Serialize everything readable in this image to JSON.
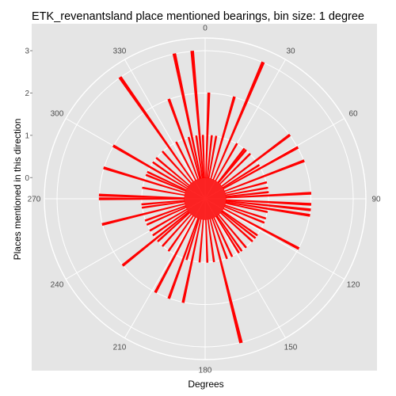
{
  "chart_data": {
    "type": "bar",
    "coord": "polar",
    "title": "ETK_revenantsland place mentioned bearings, bin size: 1 degree",
    "xlabel": "Degrees",
    "ylabel": "Places mentioned in this direction",
    "angle_ticks": [
      "0",
      "30",
      "60",
      "90",
      "120",
      "150",
      "180",
      "210",
      "240",
      "270",
      "300",
      "330"
    ],
    "radial_ticks": [
      "0",
      "1",
      "2",
      "3"
    ],
    "ylim": [
      -0.5,
      3.3
    ],
    "grid": true,
    "bar_fill": "#ff0000",
    "bar_outline": "#ff0000",
    "panel_background": "#e5e5e5",
    "grid_color": "#ffffff",
    "bars": [
      {
        "deg": 348,
        "count": 3
      },
      {
        "deg": 355,
        "count": 3
      },
      {
        "deg": 2,
        "count": 2
      },
      {
        "deg": 23,
        "count": 3
      },
      {
        "deg": 16,
        "count": 2
      },
      {
        "deg": 340,
        "count": 2
      },
      {
        "deg": 325,
        "count": 3
      },
      {
        "deg": 53,
        "count": 2
      },
      {
        "deg": 61,
        "count": 2
      },
      {
        "deg": 69,
        "count": 2
      },
      {
        "deg": 87,
        "count": 2
      },
      {
        "deg": 93,
        "count": 2
      },
      {
        "deg": 96,
        "count": 2
      },
      {
        "deg": 99,
        "count": 2
      },
      {
        "deg": 118,
        "count": 2
      },
      {
        "deg": 166,
        "count": 3
      },
      {
        "deg": 192,
        "count": 2
      },
      {
        "deg": 200,
        "count": 2
      },
      {
        "deg": 208,
        "count": 2
      },
      {
        "deg": 231,
        "count": 2
      },
      {
        "deg": 256,
        "count": 2
      },
      {
        "deg": 270,
        "count": 2
      },
      {
        "deg": 272,
        "count": 2
      },
      {
        "deg": 287,
        "count": 2
      },
      {
        "deg": 300,
        "count": 2
      },
      {
        "deg": 6,
        "count": 1
      },
      {
        "deg": 10,
        "count": 1
      },
      {
        "deg": 30,
        "count": 1
      },
      {
        "deg": 38,
        "count": 1
      },
      {
        "deg": 45,
        "count": 1
      },
      {
        "deg": 75,
        "count": 1
      },
      {
        "deg": 80,
        "count": 1
      },
      {
        "deg": 108,
        "count": 1
      },
      {
        "deg": 112,
        "count": 1
      },
      {
        "deg": 125,
        "count": 1
      },
      {
        "deg": 132,
        "count": 1
      },
      {
        "deg": 140,
        "count": 1
      },
      {
        "deg": 145,
        "count": 1
      },
      {
        "deg": 155,
        "count": 1
      },
      {
        "deg": 172,
        "count": 1
      },
      {
        "deg": 178,
        "count": 1
      },
      {
        "deg": 185,
        "count": 1
      },
      {
        "deg": 215,
        "count": 1
      },
      {
        "deg": 222,
        "count": 1
      },
      {
        "deg": 240,
        "count": 1
      },
      {
        "deg": 246,
        "count": 1
      },
      {
        "deg": 250,
        "count": 1
      },
      {
        "deg": 262,
        "count": 1
      },
      {
        "deg": 280,
        "count": 1
      },
      {
        "deg": 292,
        "count": 1
      },
      {
        "deg": 305,
        "count": 1
      },
      {
        "deg": 310,
        "count": 1
      },
      {
        "deg": 318,
        "count": 1
      },
      {
        "deg": 333,
        "count": 1
      },
      {
        "deg": 345,
        "count": 1
      },
      {
        "deg": 352,
        "count": 1
      },
      {
        "deg": 358,
        "count": 1
      },
      {
        "deg": 40,
        "count": 1
      },
      {
        "deg": 58,
        "count": 1
      },
      {
        "deg": 128,
        "count": 1
      },
      {
        "deg": 160,
        "count": 1
      },
      {
        "deg": 197,
        "count": 1
      },
      {
        "deg": 228,
        "count": 1
      },
      {
        "deg": 265,
        "count": 1
      },
      {
        "deg": 295,
        "count": 1
      },
      {
        "deg": 102,
        "count": 1
      },
      {
        "deg": 148,
        "count": 1
      },
      {
        "deg": 235,
        "count": 1
      },
      {
        "deg": 84,
        "count": 1
      }
    ]
  }
}
